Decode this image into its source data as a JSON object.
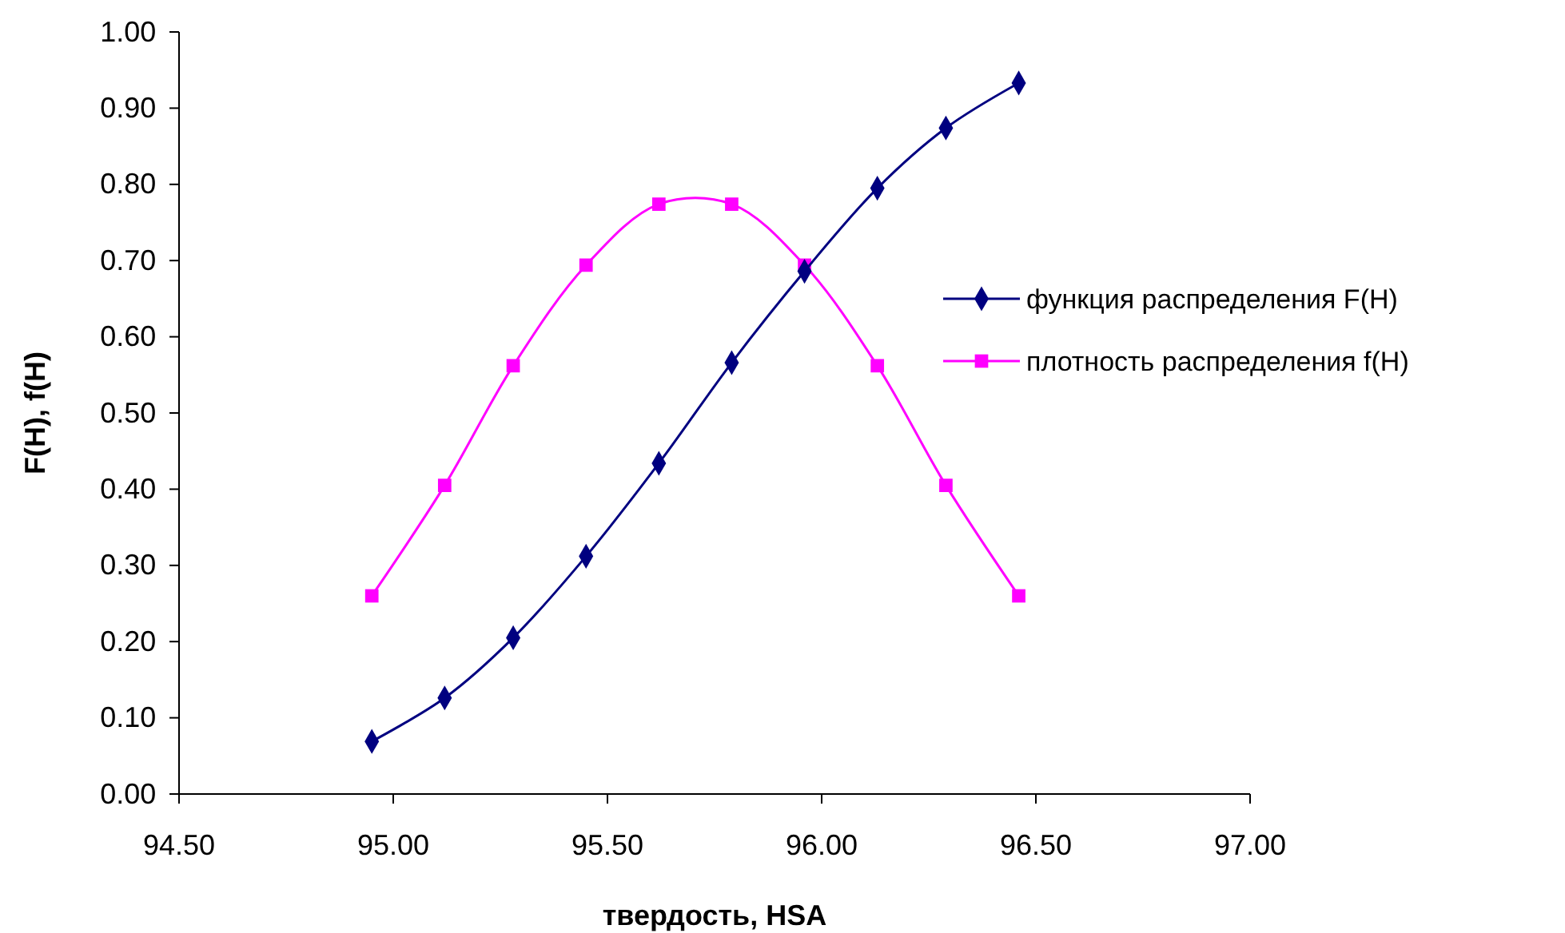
{
  "chart_data": {
    "type": "line",
    "xlabel": "твердость, HSA",
    "ylabel": "F(H), f(H)",
    "x": [
      94.95,
      95.12,
      95.28,
      95.45,
      95.62,
      95.79,
      95.96,
      96.13,
      96.29,
      96.46
    ],
    "series": [
      {
        "name": "функция распределения F(H)",
        "color": "#000080",
        "marker": "diamond",
        "values": [
          0.069,
          0.126,
          0.205,
          0.312,
          0.434,
          0.566,
          0.686,
          0.795,
          0.874,
          0.933
        ]
      },
      {
        "name": "плотность распределения f(H)",
        "color": "#ff00ff",
        "marker": "square",
        "values": [
          0.26,
          0.405,
          0.562,
          0.694,
          0.774,
          0.774,
          0.694,
          0.562,
          0.405,
          0.26
        ]
      }
    ],
    "xlim": [
      94.5,
      97
    ],
    "xticks": [
      {
        "value": 94.5,
        "label": "94.50"
      },
      {
        "value": 95,
        "label": "95.00"
      },
      {
        "value": 95.5,
        "label": "95.50"
      },
      {
        "value": 96,
        "label": "96.00"
      },
      {
        "value": 96.5,
        "label": "96.50"
      },
      {
        "value": 97,
        "label": "97.00"
      }
    ],
    "ylim": [
      0,
      1
    ],
    "yticks": [
      {
        "value": 0,
        "label": "0.00"
      },
      {
        "value": 0.1,
        "label": "0.10"
      },
      {
        "value": 0.2,
        "label": "0.20"
      },
      {
        "value": 0.3,
        "label": "0.30"
      },
      {
        "value": 0.4,
        "label": "0.40"
      },
      {
        "value": 0.5,
        "label": "0.50"
      },
      {
        "value": 0.6,
        "label": "0.60"
      },
      {
        "value": 0.7,
        "label": "0.70"
      },
      {
        "value": 0.8,
        "label": "0.80"
      },
      {
        "value": 0.9,
        "label": "0.90"
      },
      {
        "value": 1,
        "label": "1.00"
      }
    ],
    "grid": false,
    "legend": "right",
    "line_style": "solid"
  }
}
